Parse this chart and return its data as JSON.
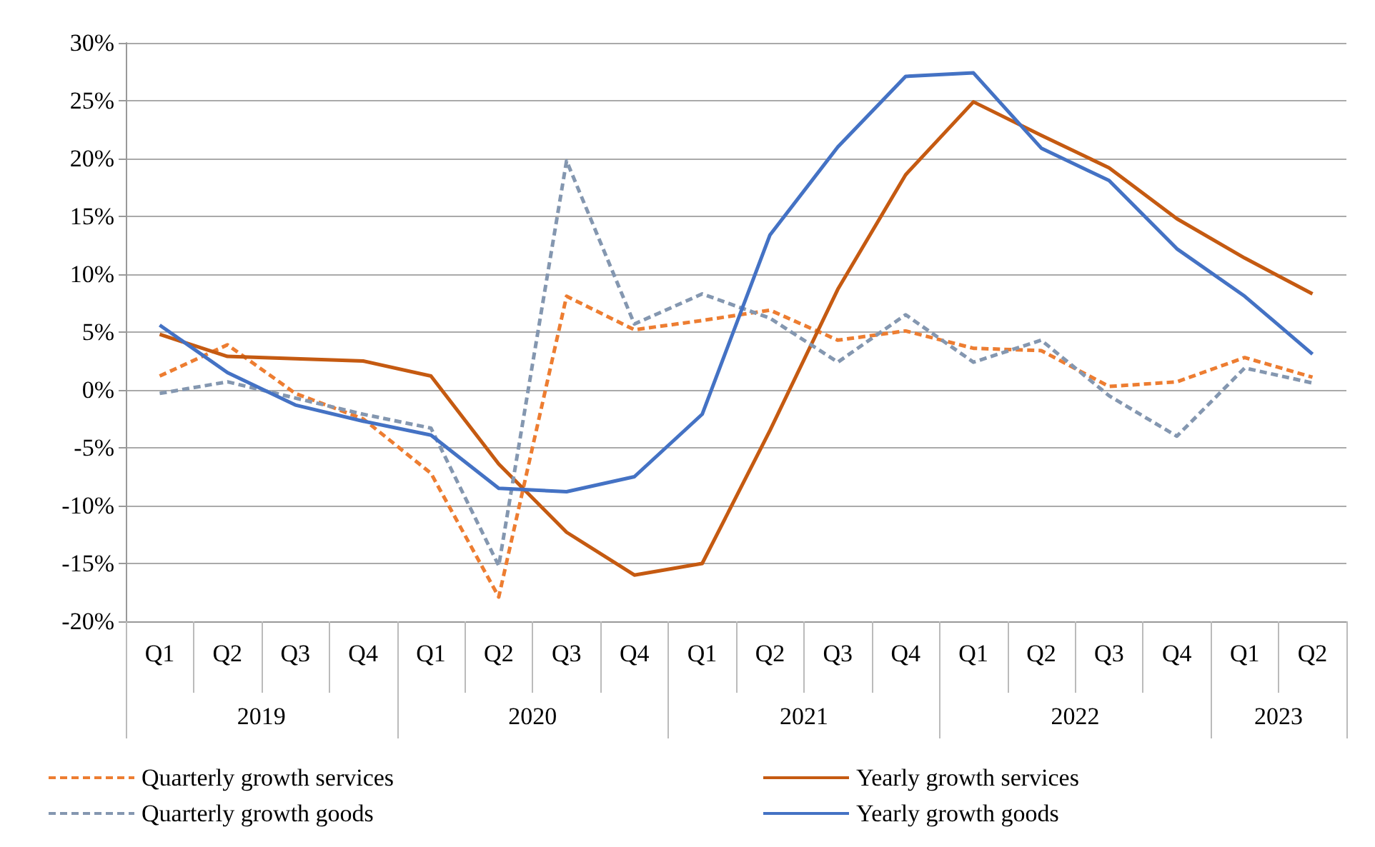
{
  "chart_data": {
    "type": "line",
    "categories": [
      "Q1",
      "Q2",
      "Q3",
      "Q4",
      "Q1",
      "Q2",
      "Q3",
      "Q4",
      "Q1",
      "Q2",
      "Q3",
      "Q4",
      "Q1",
      "Q2",
      "Q3",
      "Q4",
      "Q1",
      "Q2"
    ],
    "annotations": [
      "2019",
      "2020",
      "2021",
      "2022",
      "2023"
    ],
    "series": [
      {
        "name": "Quarterly growth services",
        "color": "#ed7d31",
        "line_style": "dashed",
        "values": [
          1.2,
          3.9,
          -0.3,
          -2.5,
          -7.2,
          -17.9,
          8.1,
          5.2,
          6.0,
          6.9,
          4.3,
          5.1,
          3.6,
          3.4,
          0.3,
          0.7,
          2.8,
          1.1
        ]
      },
      {
        "name": "Yearly growth services",
        "color": "#c55a11",
        "line_style": "solid",
        "values": [
          4.8,
          2.9,
          2.7,
          2.5,
          1.2,
          -6.4,
          -12.3,
          -16.0,
          -15.0,
          -3.5,
          8.7,
          18.6,
          24.9,
          22.0,
          19.2,
          14.8,
          11.4,
          8.3
        ]
      },
      {
        "name": "Quarterly growth goods",
        "color": "#8497b0",
        "line_style": "dashed",
        "values": [
          -0.3,
          0.7,
          -0.7,
          -2.1,
          -3.3,
          -15.2,
          19.8,
          5.7,
          8.3,
          6.2,
          2.4,
          6.5,
          2.4,
          4.3,
          -0.5,
          -4.0,
          1.9,
          0.6
        ]
      },
      {
        "name": "Yearly growth goods",
        "color": "#4472c4",
        "line_style": "solid",
        "values": [
          5.6,
          1.5,
          -1.3,
          -2.7,
          -3.9,
          -8.5,
          -8.8,
          -7.5,
          -2.1,
          13.4,
          21.0,
          27.1,
          27.4,
          20.9,
          18.1,
          12.2,
          8.1,
          3.1
        ]
      }
    ],
    "ylim": [
      -20,
      30
    ],
    "yticks": [
      {
        "value": -20,
        "label": "-20%"
      },
      {
        "value": -15,
        "label": "-15%"
      },
      {
        "value": -10,
        "label": "-10%"
      },
      {
        "value": -5,
        "label": "-5%"
      },
      {
        "value": 0,
        "label": "0%"
      },
      {
        "value": 5,
        "label": "5%"
      },
      {
        "value": 10,
        "label": "10%"
      },
      {
        "value": 15,
        "label": "15%"
      },
      {
        "value": 20,
        "label": "20%"
      },
      {
        "value": 25,
        "label": "25%"
      },
      {
        "value": 30,
        "label": "30%"
      }
    ],
    "grid": "y",
    "legend": "bottom",
    "marker": "none"
  }
}
